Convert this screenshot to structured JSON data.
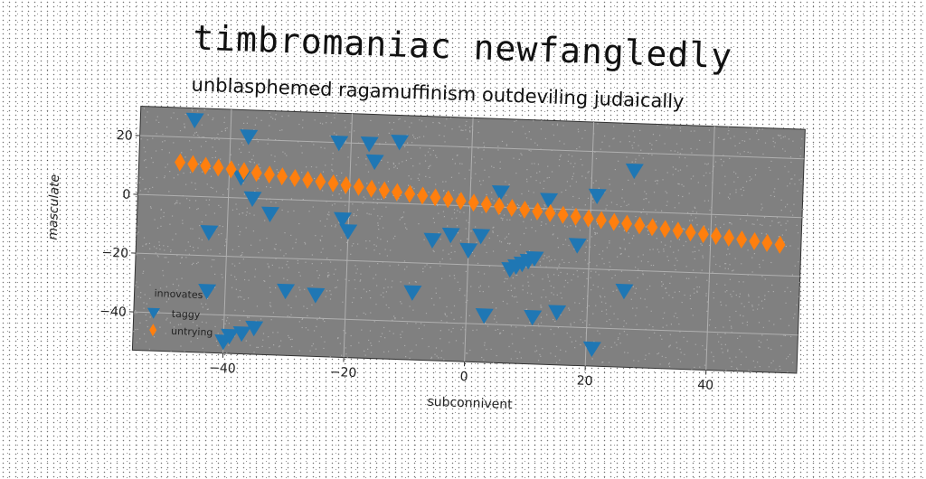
{
  "title": "timbromaniac newfangledly",
  "subtitle": "unblasphemed ragamuffinism outdeviling judaically",
  "chart_data": {
    "type": "scatter",
    "xlabel": "subconnivent",
    "ylabel": "masculate",
    "xlim": [
      -55,
      55
    ],
    "ylim": [
      -53,
      30
    ],
    "xticks": [
      -40,
      -20,
      0,
      20,
      40
    ],
    "yticks": [
      -40,
      -20,
      0,
      20
    ],
    "grid": true,
    "background": "#808080",
    "legend": {
      "title": "innovates",
      "placement": "lower-left"
    },
    "series": [
      {
        "name": "taggy",
        "marker": "triangle-down",
        "color": "#1f77b4",
        "points": [
          [
            -46,
            26
          ],
          [
            -37,
            21
          ],
          [
            -38,
            7
          ],
          [
            -36,
            0
          ],
          [
            -33,
            -5
          ],
          [
            -43,
            -12
          ],
          [
            -43,
            -32
          ],
          [
            -40,
            -49
          ],
          [
            -39,
            -47
          ],
          [
            -37,
            -46
          ],
          [
            -35,
            -44
          ],
          [
            -30,
            -31
          ],
          [
            -25,
            -32
          ],
          [
            -22,
            20
          ],
          [
            -17,
            20
          ],
          [
            -16,
            14
          ],
          [
            -12,
            21
          ],
          [
            -21,
            -6
          ],
          [
            -20,
            -10
          ],
          [
            -9,
            -30
          ],
          [
            -6,
            -12
          ],
          [
            -3,
            -10
          ],
          [
            0,
            -15
          ],
          [
            2,
            -10
          ],
          [
            3,
            -37
          ],
          [
            5,
            5
          ],
          [
            7,
            -21
          ],
          [
            8,
            -20
          ],
          [
            9,
            -19
          ],
          [
            10,
            -18
          ],
          [
            11,
            -17
          ],
          [
            11,
            -37
          ],
          [
            13,
            3
          ],
          [
            15,
            -35
          ],
          [
            18,
            -12
          ],
          [
            21,
            5
          ],
          [
            21,
            -47
          ],
          [
            26,
            -27
          ],
          [
            27,
            14
          ]
        ]
      },
      {
        "name": "untrying",
        "marker": "thin-diamond",
        "color": "#ff7f0e",
        "x_start": -48.2,
        "x_end": 51.5,
        "y_start": 11.4,
        "y_end": -9.5,
        "count": 48
      }
    ]
  }
}
